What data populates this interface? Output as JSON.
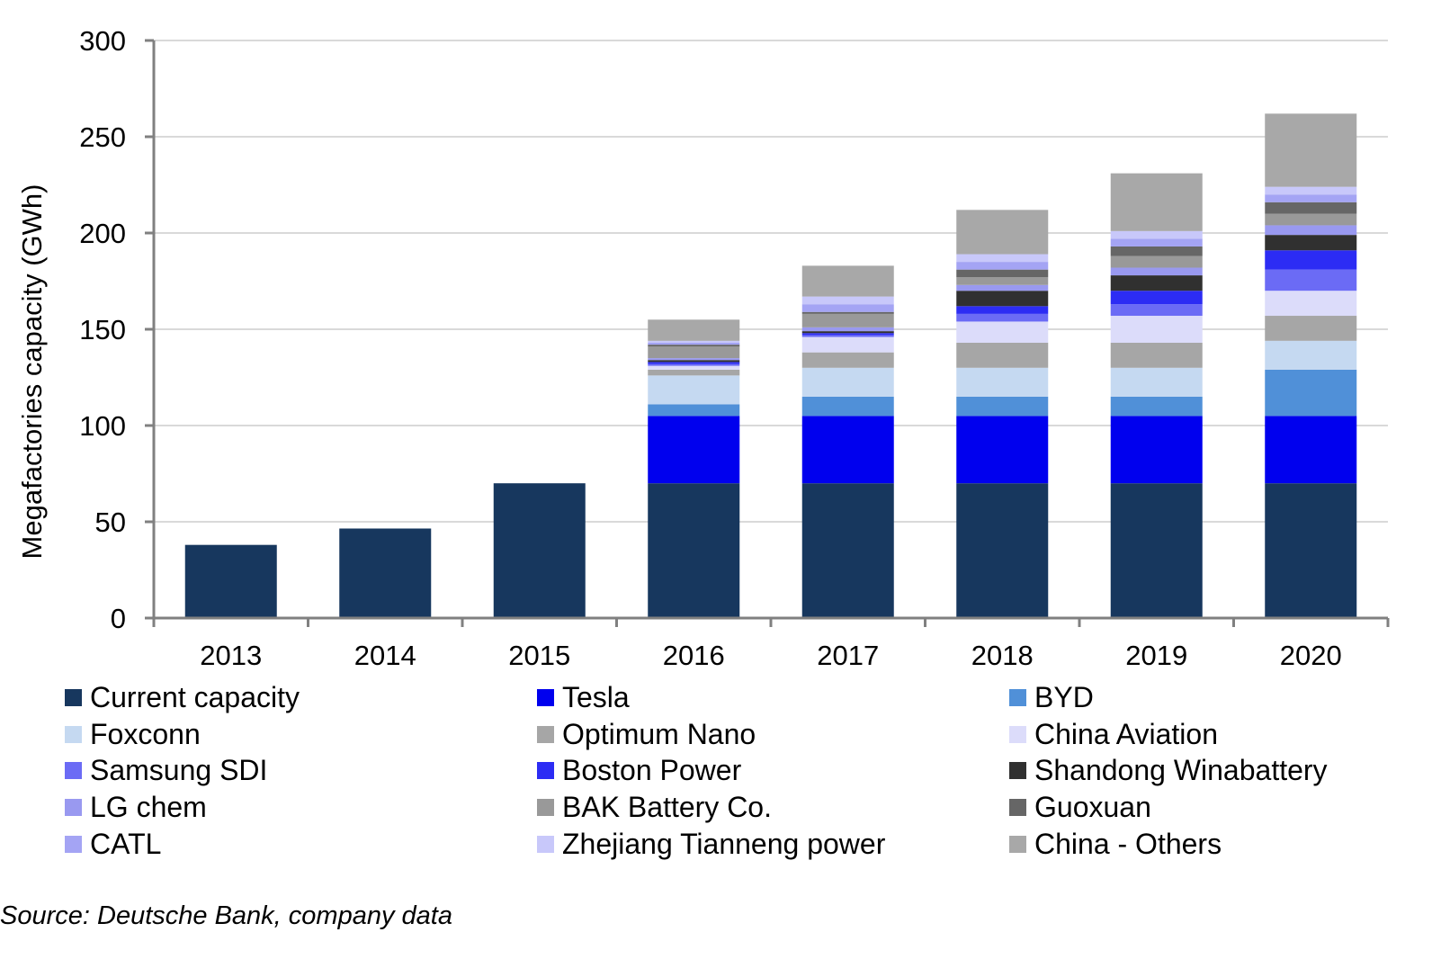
{
  "chart_data": {
    "type": "bar",
    "stacked": true,
    "title": "",
    "xlabel": "",
    "ylabel": "Megafactories capacity (GWh)",
    "ylim": [
      0,
      300
    ],
    "yticks": [
      "0",
      "50",
      "100",
      "150",
      "200",
      "250",
      "300"
    ],
    "grid": true,
    "legend_position": "bottom",
    "categories": [
      "2013",
      "2014",
      "2015",
      "2016",
      "2017",
      "2018",
      "2019",
      "2020"
    ],
    "series": [
      {
        "name": "Current capacity",
        "color": "#17375e",
        "values": [
          38,
          46.5,
          70,
          70,
          70,
          70,
          70,
          70
        ]
      },
      {
        "name": "Tesla",
        "color": "#0000ee",
        "values": [
          0,
          0,
          0,
          35,
          35,
          35,
          35,
          35
        ]
      },
      {
        "name": "BYD",
        "color": "#5090d8",
        "values": [
          0,
          0,
          0,
          6,
          10,
          10,
          10,
          24
        ]
      },
      {
        "name": "Foxconn",
        "color": "#c5d9f1",
        "values": [
          0,
          0,
          0,
          15,
          15,
          15,
          15,
          15
        ]
      },
      {
        "name": "Optimum Nano",
        "color": "#a6a6a6",
        "values": [
          0,
          0,
          0,
          3,
          8,
          13,
          13,
          13
        ]
      },
      {
        "name": "China Aviation",
        "color": "#dcdcfa",
        "values": [
          0,
          0,
          0,
          2,
          8,
          11,
          14,
          13
        ]
      },
      {
        "name": "Samsung SDI",
        "color": "#6b6bf5",
        "values": [
          0,
          0,
          0,
          1,
          1,
          4,
          6,
          11
        ]
      },
      {
        "name": "Boston Power",
        "color": "#2c2cf4",
        "values": [
          0,
          0,
          0,
          1,
          1,
          4,
          7,
          10
        ]
      },
      {
        "name": "Shandong Winabattery",
        "color": "#303030",
        "values": [
          0,
          0,
          0,
          1,
          1,
          8,
          8,
          8
        ]
      },
      {
        "name": "LG chem",
        "color": "#9999f0",
        "values": [
          0,
          0,
          0,
          1,
          2,
          3,
          4,
          5
        ]
      },
      {
        "name": "BAK Battery Co.",
        "color": "#999999",
        "values": [
          0,
          0,
          0,
          6,
          7,
          4,
          6,
          6
        ]
      },
      {
        "name": "Guoxuan",
        "color": "#666666",
        "values": [
          0,
          0,
          0,
          1,
          1,
          4,
          5,
          6
        ]
      },
      {
        "name": "CATL",
        "color": "#a4a4f4",
        "values": [
          0,
          0,
          0,
          1,
          4,
          4,
          4,
          4
        ]
      },
      {
        "name": "Zhejiang Tianneng power",
        "color": "#c8c8fa",
        "values": [
          0,
          0,
          0,
          1,
          4,
          4,
          4,
          4
        ]
      },
      {
        "name": "China - Others",
        "color": "#a8a8a8",
        "values": [
          0,
          0,
          0,
          11,
          16,
          23,
          30,
          38
        ]
      }
    ]
  },
  "source": "Source: Deutsche Bank, company data"
}
